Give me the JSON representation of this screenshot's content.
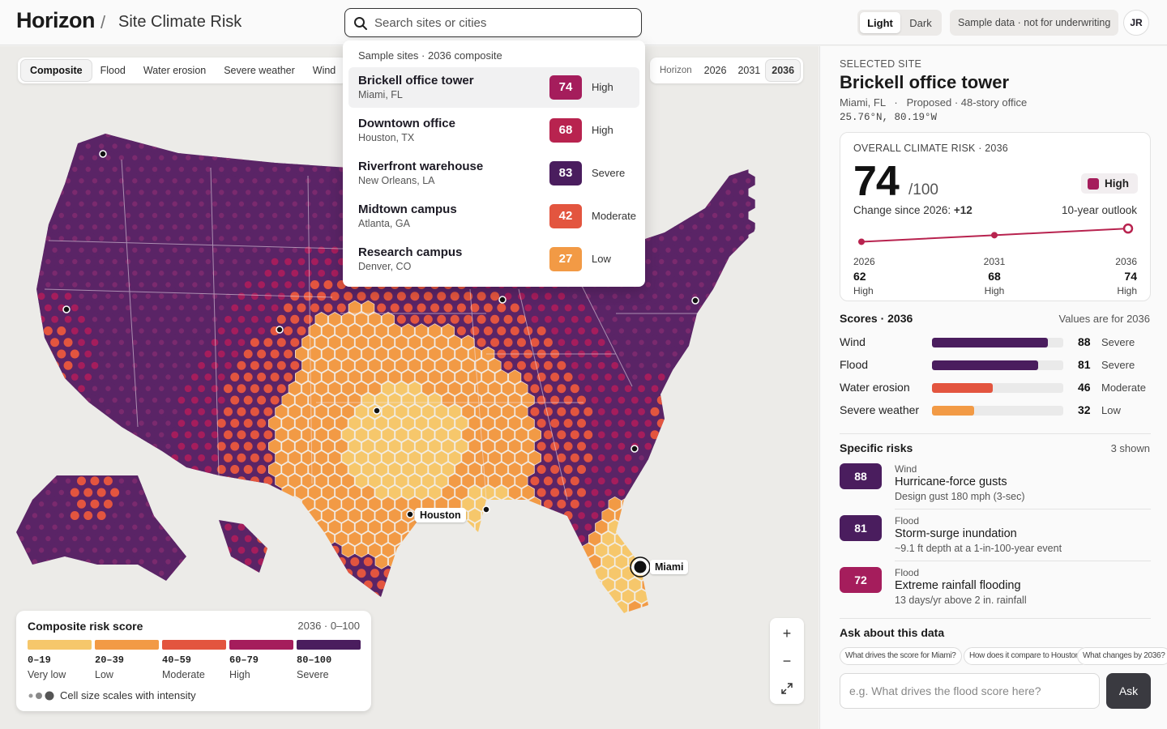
{
  "header": {
    "brand": "Horizon",
    "separator": "/",
    "title": "Site Climate Risk",
    "search_placeholder": "Search sites or cities",
    "theme_light": "Light",
    "theme_dark": "Dark",
    "sample_note": "Sample data · not for underwriting",
    "avatar_initials": "JR"
  },
  "map": {
    "tabs": [
      "Composite",
      "Flood",
      "Water erosion",
      "Severe weather",
      "Wind"
    ],
    "active_tab": "Composite",
    "horizon_label": "Horizon",
    "years": [
      "2026",
      "2031",
      "2036"
    ],
    "active_year": "2036",
    "labels": {
      "houston": "Houston",
      "miami": "Miami"
    },
    "colors": {
      "very_low": "#f6c76b",
      "low": "#f29a45",
      "moderate": "#e3553f",
      "high": "#a51d5c",
      "severe": "#4a1d5e",
      "land": "#5a2466",
      "water": "#ecebe8"
    }
  },
  "dropdown": {
    "heading": "Sample sites · 2036 composite",
    "items": [
      {
        "name": "Brickell office tower",
        "location": "Miami, FL",
        "score": "74",
        "level": "High",
        "color": "#a51d5c"
      },
      {
        "name": "Downtown office",
        "location": "Houston, TX",
        "score": "68",
        "level": "High",
        "color": "#b8234f"
      },
      {
        "name": "Riverfront warehouse",
        "location": "New Orleans, LA",
        "score": "83",
        "level": "Severe",
        "color": "#4a1d5e"
      },
      {
        "name": "Midtown campus",
        "location": "Atlanta, GA",
        "score": "42",
        "level": "Moderate",
        "color": "#e3553f"
      },
      {
        "name": "Research campus",
        "location": "Denver, CO",
        "score": "27",
        "level": "Low",
        "color": "#f29a45"
      }
    ]
  },
  "legend": {
    "title": "Composite risk score",
    "range": "2036 · 0–100",
    "bins": [
      {
        "range": "0–19",
        "label": "Very low",
        "color": "#f6c76b"
      },
      {
        "range": "20–39",
        "label": "Low",
        "color": "#f29a45"
      },
      {
        "range": "40–59",
        "label": "Moderate",
        "color": "#e3553f"
      },
      {
        "range": "60–79",
        "label": "High",
        "color": "#a51d5c"
      },
      {
        "range": "80–100",
        "label": "Severe",
        "color": "#4a1d5e"
      }
    ],
    "note": "Cell size scales with intensity"
  },
  "panel": {
    "eyebrow": "SELECTED SITE",
    "site_name": "Brickell office tower",
    "meta": "Miami, FL   ·   Proposed · 48-story office",
    "coords": "25.76°N, 80.19°W",
    "overall": {
      "eyebrow": "OVERALL CLIMATE RISK · 2036",
      "score": "74",
      "denominator": "/100",
      "level": "High",
      "change_label": "Change since 2026:",
      "change_value": "+12",
      "outlook": "10-year outlook",
      "timeline": [
        {
          "year": "2026",
          "score": 62,
          "level": "High"
        },
        {
          "year": "2031",
          "score": 68,
          "level": "High"
        },
        {
          "year": "2036",
          "score": 74,
          "level": "High"
        }
      ]
    },
    "scores_title": "Scores · 2036",
    "scores_note": "Values are for 2036",
    "scores": [
      {
        "name": "Wind",
        "value": 88,
        "level": "Severe",
        "color": "#4a1d5e"
      },
      {
        "name": "Flood",
        "value": 81,
        "level": "Severe",
        "color": "#4a1d5e"
      },
      {
        "name": "Water erosion",
        "value": 46,
        "level": "Moderate",
        "color": "#e3553f"
      },
      {
        "name": "Severe weather",
        "value": 32,
        "level": "Low",
        "color": "#f29a45"
      }
    ],
    "specific_title": "Specific risks",
    "specific_count": "3 shown",
    "specific": [
      {
        "score": "88",
        "category": "Wind",
        "title": "Hurricane-force gusts",
        "desc": "Design gust 180 mph (3-sec)",
        "color": "#4a1d5e"
      },
      {
        "score": "81",
        "category": "Flood",
        "title": "Storm-surge inundation",
        "desc": "~9.1 ft depth at a 1-in-100-year event",
        "color": "#4a1d5e"
      },
      {
        "score": "72",
        "category": "Flood",
        "title": "Extreme rainfall flooding",
        "desc": "13 days/yr above 2 in. rainfall",
        "color": "#a51d5c"
      }
    ],
    "ask_title": "Ask about this data",
    "chips": [
      "What drives the score for Miami?",
      "How does it compare to Houston?",
      "What changes by 2036?"
    ],
    "ask_placeholder": "e.g. What drives the flood score here?",
    "ask_button": "Ask"
  }
}
